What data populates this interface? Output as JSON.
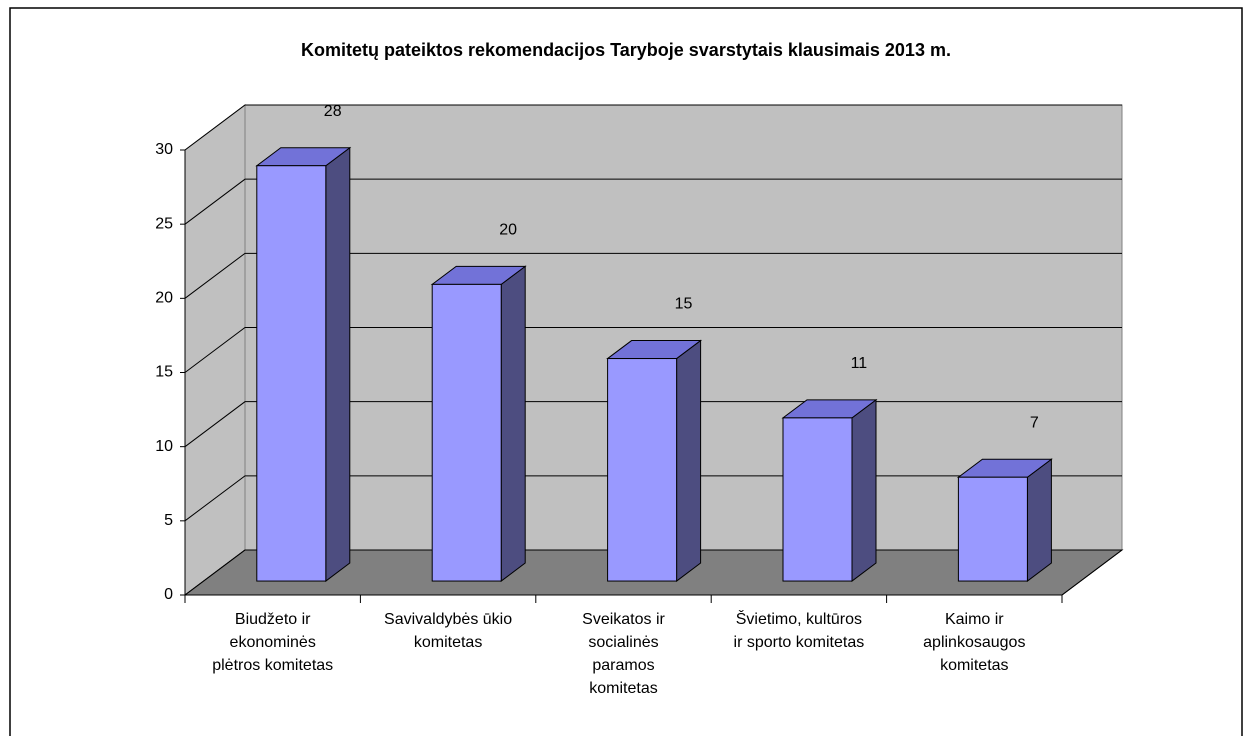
{
  "chart_data": {
    "type": "bar3d",
    "title": "Komitetų pateiktos rekomendacijos Taryboje svarstytais klausimais 2013 m.",
    "categories": [
      "Biudžeto ir\nekonominės\nplėtros komitetas",
      "Savivaldybės ūkio\nkomitetas",
      "Sveikatos ir\nsocialinės\nparamos\nkomitetas",
      "Švietimo, kultūros\nir sporto komitetas",
      "Kaimo ir\naplinkosaugos\nkomitetas"
    ],
    "values": [
      28,
      20,
      15,
      11,
      7
    ],
    "color": "#9999ff",
    "ylim": [
      0,
      30
    ],
    "yticks": [
      0,
      5,
      10,
      15,
      20,
      25,
      30
    ],
    "grid": true
  }
}
